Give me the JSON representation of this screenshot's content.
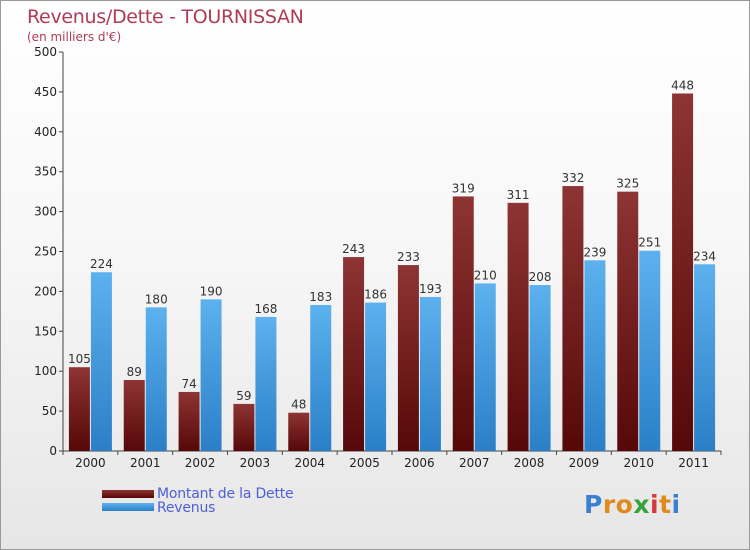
{
  "title": "Revenus/Dette - TOURNISSAN",
  "subtitle": "(en milliers d'€)",
  "colors": {
    "dette": "#7d1a1a",
    "revenus": "#4ea6e6",
    "title": "#b03a5a"
  },
  "legend": {
    "dette_label": "Montant de la Dette",
    "revenus_label": "Revenus"
  },
  "logo": {
    "text": "Proxiti",
    "letters": [
      "P",
      "r",
      "o",
      "x",
      "i",
      "t",
      "i"
    ],
    "colors": [
      "#3a7fd0",
      "#e08a1e",
      "#e08a1e",
      "#3aa23a",
      "#d63a3a",
      "#e08a1e",
      "#3a7fd0"
    ]
  },
  "chart_data": {
    "type": "bar",
    "title": "Revenus/Dette - TOURNISSAN",
    "subtitle": "(en milliers d'€)",
    "categories": [
      "2000",
      "2001",
      "2002",
      "2003",
      "2004",
      "2005",
      "2006",
      "2007",
      "2008",
      "2009",
      "2010",
      "2011"
    ],
    "series": [
      {
        "name": "Montant de la Dette",
        "values": [
          105,
          89,
          74,
          59,
          48,
          243,
          233,
          319,
          311,
          332,
          325,
          448
        ]
      },
      {
        "name": "Revenus",
        "values": [
          224,
          180,
          190,
          168,
          183,
          186,
          193,
          210,
          208,
          239,
          251,
          234
        ]
      }
    ],
    "ylim": [
      0,
      500
    ],
    "yticks": [
      "0",
      "50",
      "100",
      "150",
      "200",
      "250",
      "300",
      "350",
      "400",
      "450",
      "500"
    ],
    "grid": false,
    "legend_position": "bottom-left"
  }
}
